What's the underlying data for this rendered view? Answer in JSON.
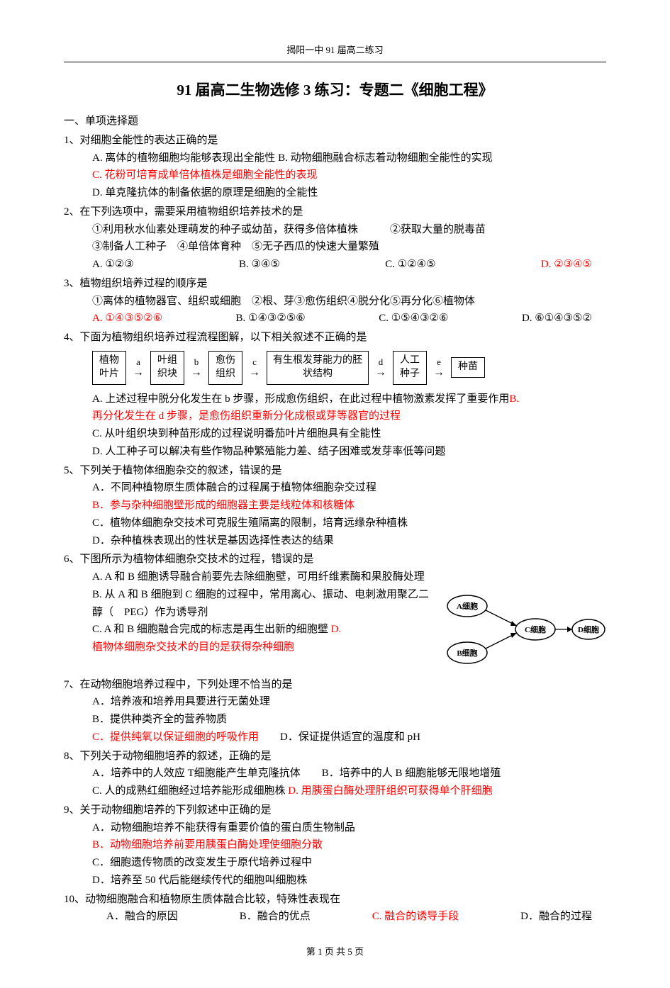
{
  "header": "揭阳一中  91 届高二练习",
  "title": "91 届高二生物选修 3 练习：专题二《细胞工程》",
  "section1": "一、单项选择题",
  "q1": {
    "stem": "1、对细胞全能性的表达正确的是",
    "a": "A.  离体的植物细胞均能够表现出全能性   B.  动物细胞融合标志着动物细胞全能性的实现",
    "c": "C.  花粉可培育成单倍体植株是细胞全能性的表现",
    "d": "D.  单克隆抗体的制备依据的原理是细胞的全能性"
  },
  "q2": {
    "stem": "2、在下列选项中，需要采用植物组织培养技术的是",
    "l1": "①利用秋水仙素处理萌发的种子或幼苗，获得多倍体植株　　　②获取大量的脱毒苗",
    "l2": "③制备人工种子　④单倍体育种　⑤无子西瓜的快速大量繁殖",
    "a": "A. ①②③",
    "b": "B. ③④⑤",
    "c": "C. ①②④⑤",
    "d": "D. ②③④⑤"
  },
  "q3": {
    "stem": "3、植物组织培养过程的顺序是",
    "l1": "①离体的植物器官、组织或细胞　②根、芽③愈伤组织④脱分化⑤再分化⑥植物体",
    "a": "A. ①④③⑤②⑥",
    "b": "B. ①④③②⑤⑥",
    "c": "C. ①⑤④③②⑥",
    "d": "D. ⑥①④③⑤②"
  },
  "q4": {
    "stem": "4、下面为植物组织培养过程流程图解，以下相关叙述不正确的是",
    "boxes": [
      "植物\n叶片",
      "叶组\n织块",
      "愈伤\n组织",
      "有生根发芽能力的胚\n状结构",
      "人工\n种子",
      "种苗"
    ],
    "arrows": [
      "a",
      "b",
      "c",
      "d",
      "e"
    ],
    "a": "A. 上述过程中脱分化发生在 b 步骤，形成愈伤组织，在此过程中植物激素发挥了重要作用",
    "b_pre": "B. ",
    "b": "再分化发生在 d 步骤，是愈伤组织重新分化成根或芽等器官的过程",
    "c": "C. 从叶组织块到种苗形成的过程说明番茄叶片细胞具有全能性",
    "d": "D. 人工种子可以解决有些作物品种繁殖能力差、结子困难或发芽率低等问题"
  },
  "q5": {
    "stem": "5、下列关于植物体细胞杂交的叙述，错误的是",
    "a": "A．不同种植物原生质体融合的过程属于植物体细胞杂交过程",
    "b": "B．参与杂种细胞壁形成的细胞器主要是线粒体和核糖体",
    "c": "C．植物体细胞杂交技术可克服生殖隔离的限制，培育远缘杂种植株",
    "d": "D．杂种植株表现出的性状是基因选择性表达的结果"
  },
  "q6": {
    "stem": "6、下图所示为植物体细胞杂交技术的过程，错误的是",
    "a": "A. A 和 B 细胞诱导融合前要先去除细胞壁，可用纤维素酶和果胶酶处理",
    "b": "B. 从 A 和 B 细胞到 C 细胞的过程中，常用离心、振动、电刺激用聚乙二醇（　PEG）作为诱导剂",
    "c": "C. A 和 B 细胞融合完成的标志是再生出新的细胞壁   ",
    "d_pre": "D. ",
    "d": "植物体细胞杂交技术的目的是获得杂种细胞",
    "cells": {
      "a": "A细胞",
      "b": "B细胞",
      "c": "C细胞",
      "d": "D细胞"
    }
  },
  "q7": {
    "stem": "7、在动物细胞培养过程中，下列处理不恰当的是",
    "a": "A．培养液和培养用具要进行无菌处理",
    "b": "B．提供种类齐全的营养物质",
    "c": "C．提供纯氧以保证细胞的呼吸作用",
    "d": "D．保证提供适宜的温度和 pH"
  },
  "q8": {
    "stem": "8、下列关于动物细胞培养的叙述，正确的是",
    "a": "A．培养中的人效应 T细胞能产生单克隆抗体　　B．培养中的人 B 细胞能够无限地增殖",
    "c": "C. 人的成熟红细胞经过培养能形成细胞株   ",
    "d": "D. 用胰蛋白酶处理肝组织可获得单个肝细胞"
  },
  "q9": {
    "stem": "9、关于动物细胞培养的下列叙述中正确的是",
    "a": "A．动物细胞培养不能获得有重要价值的蛋白质生物制品",
    "b": "B．动物细胞培养前要用胰蛋白酶处理使细胞分散",
    "c": "C．细胞遗传物质的改变发生于原代培养过程中",
    "d": "D．培养至 50 代后能继续传代的细胞叫细胞株"
  },
  "q10": {
    "stem": "10、动物细胞融合和植物原生质体融合比较，特殊性表现在",
    "a": "A．融合的原因",
    "b": "B．融合的优点",
    "c": "C. 融合的诱导手段",
    "d": "D．融合的过程"
  },
  "footer": "第 1 页 共 5 页"
}
